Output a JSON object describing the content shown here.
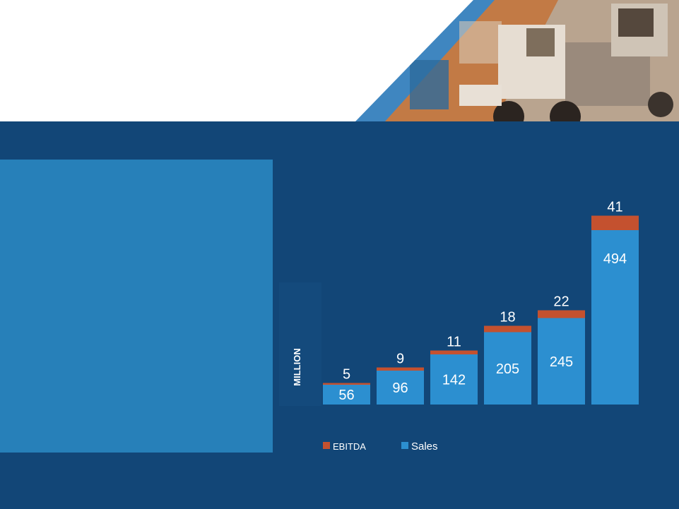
{
  "colors": {
    "panel": "#124677",
    "content_box": "#2780b9",
    "sales": "#2c8fd0",
    "ebitda": "#c4512f",
    "header_bg": "#ffffff"
  },
  "header": {
    "image": "trucks-photo"
  },
  "chart_data": {
    "type": "bar",
    "stacked": true,
    "categories": [
      "",
      "",
      "",
      "",
      "",
      ""
    ],
    "series": [
      {
        "name": "Sales",
        "values": [
          56,
          96,
          142,
          205,
          245,
          494
        ],
        "color": "#2c8fd0"
      },
      {
        "name": "EBITDA",
        "values": [
          5,
          9,
          11,
          18,
          22,
          41
        ],
        "color": "#c4512f"
      }
    ],
    "ylabel": "MILLION",
    "legend": [
      "EBITDA",
      "Sales"
    ],
    "legend_position": "bottom",
    "grid": false
  }
}
